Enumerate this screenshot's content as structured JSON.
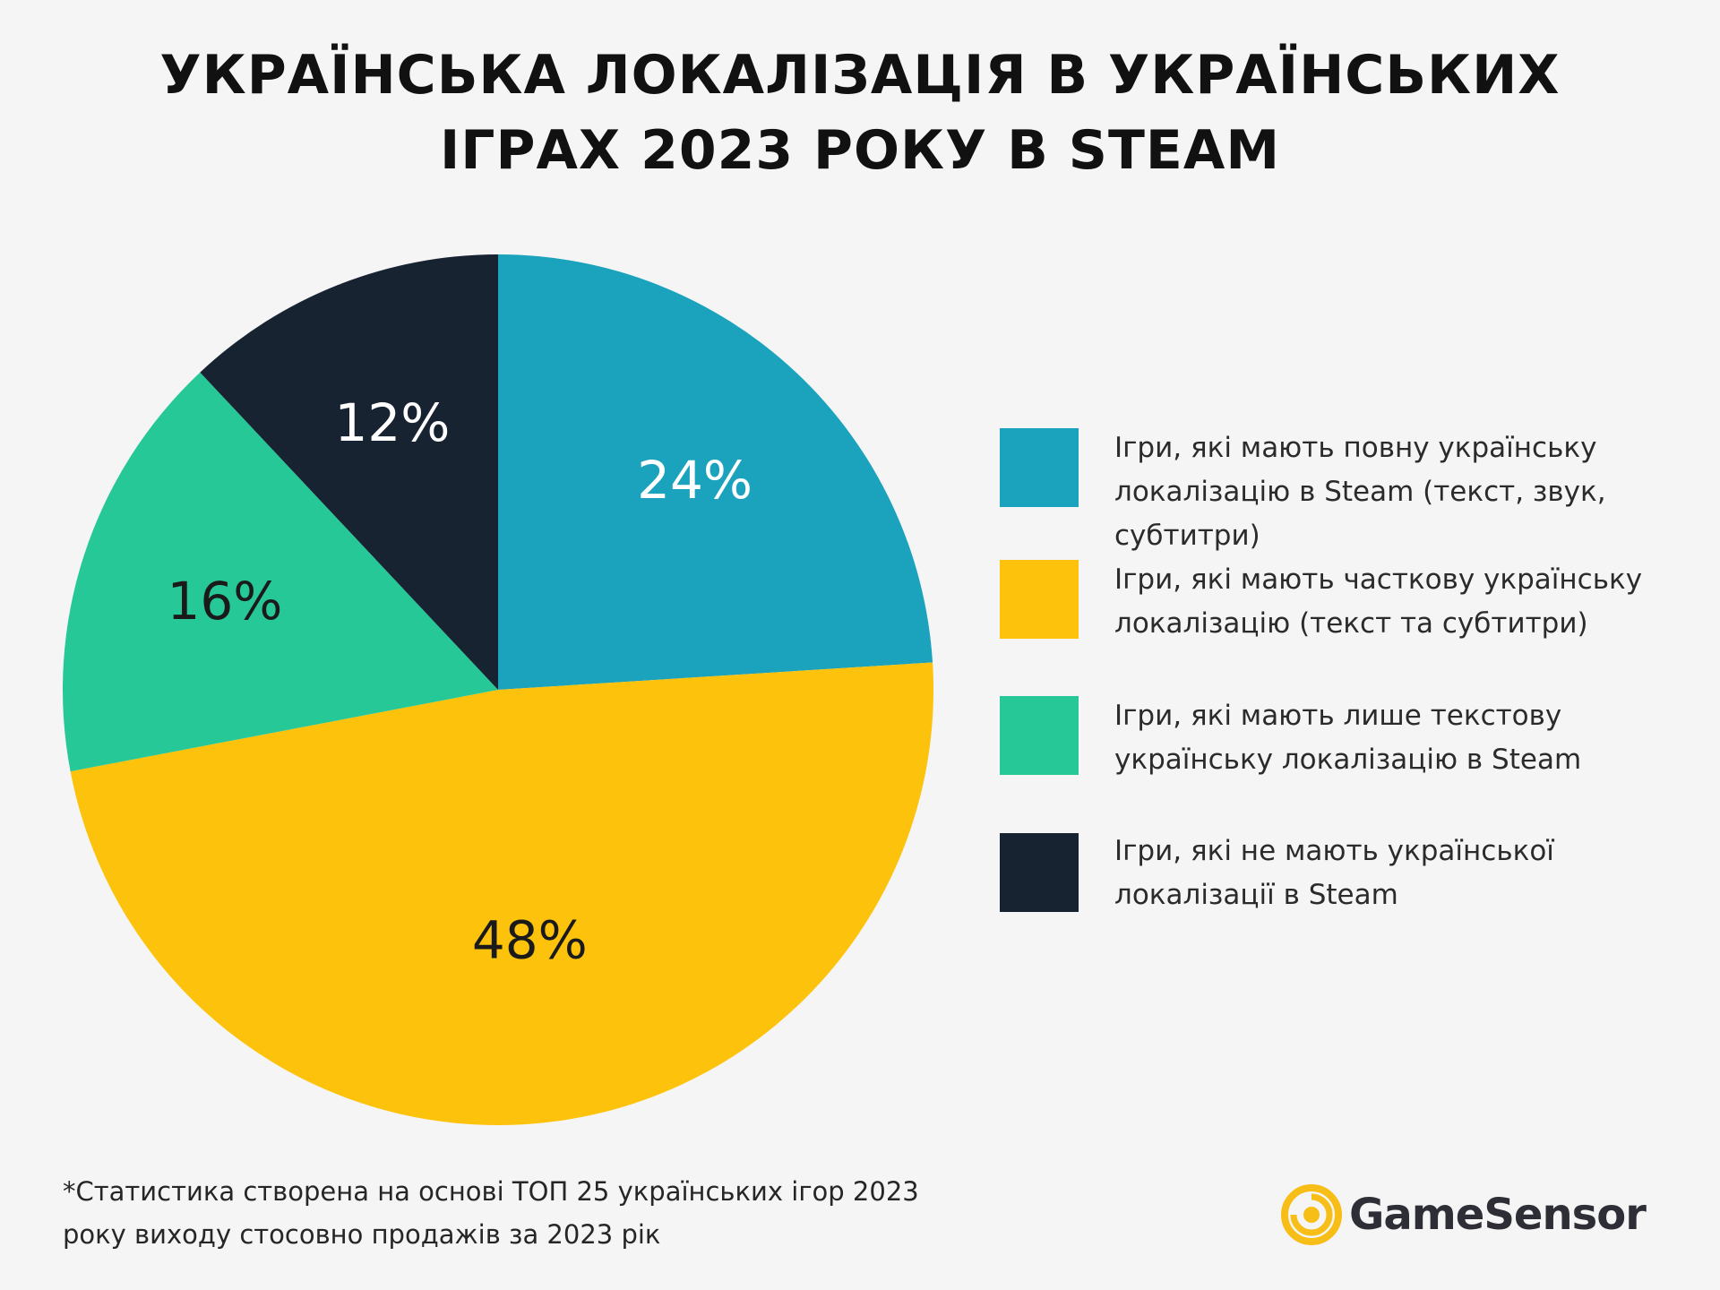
{
  "chart_data": {
    "type": "pie",
    "title": "УКРАЇНСЬКА ЛОКАЛІЗАЦІЯ В УКРАЇНСЬКИХ ІГРАХ 2023 РОКУ В STEAM",
    "title_lines": [
      "УКРАЇНСЬКА ЛОКАЛІЗАЦІЯ В УКРАЇНСЬКИХ",
      "ІГРАХ 2023 РОКУ В STEAM"
    ],
    "legend_position": "right",
    "slices": [
      {
        "label": "Ігри, які мають повну українську локалізацію в Steam (текст, звук, субтитри)",
        "value": 24,
        "display": "24%",
        "color": "#1ba3bd",
        "label_color": "#ffffff"
      },
      {
        "label": "Ігри, які мають часткову українську локалізацію (текст та субтитри)",
        "value": 48,
        "display": "48%",
        "color": "#fdc20b",
        "label_color": "#1a1a1a"
      },
      {
        "label": "Ігри, які мають лише текстову українську локалізацію в Steam",
        "value": 16,
        "display": "16%",
        "color": "#26c898",
        "label_color": "#1a1a1a"
      },
      {
        "label": "Ігри, які не мають української локалізації в Steam",
        "value": 12,
        "display": "12%",
        "color": "#182332",
        "label_color": "#ffffff"
      }
    ]
  },
  "legend": {
    "items": [
      {
        "lines": [
          "Ігри, які мають повну українську",
          "локалізацію в Steam (текст, звук,",
          "субтитри)"
        ],
        "color": "#1ba3bd"
      },
      {
        "lines": [
          "Ігри, які мають часткову українську",
          "локалізацію (текст та субтитри)"
        ],
        "color": "#fdc20b"
      },
      {
        "lines": [
          "Ігри, які мають лише текстову",
          "українську локалізацію в Steam"
        ],
        "color": "#26c898"
      },
      {
        "lines": [
          "Ігри, які не мають української",
          "локалізації в Steam"
        ],
        "color": "#182332"
      }
    ]
  },
  "footnote": {
    "lines": [
      "*Статистика створена на основі ТОП 25 українських ігор 2023",
      "року виходу стосовно продажів за 2023 рік"
    ]
  },
  "logo": {
    "text": "GameSensor",
    "color": "#f6be16"
  }
}
